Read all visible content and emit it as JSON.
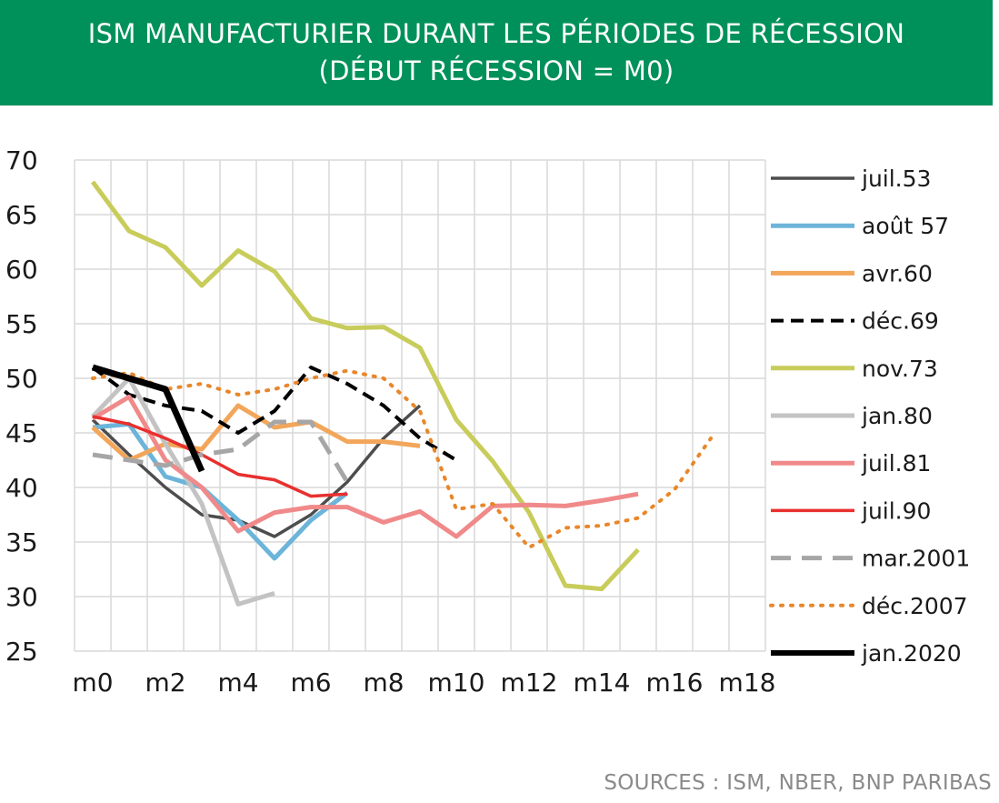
{
  "title_line1": "ISM MANUFACTURIER DURANT LES PÉRIODES DE RÉCESSION",
  "title_line2": "(DÉBUT RÉCESSION = M0)",
  "source": "SOURCES : ISM, NBER, BNP PARIBAS",
  "chart_data": {
    "type": "line",
    "ylim": [
      25,
      70
    ],
    "xlim": [
      -0.5,
      18.5
    ],
    "grid": true,
    "legend_position": "right",
    "x_tick_labels": [
      "m0",
      "m2",
      "m4",
      "m6",
      "m8",
      "m10",
      "m12",
      "m14",
      "m16",
      "m18"
    ],
    "x_tick_values": [
      0,
      2,
      4,
      6,
      8,
      10,
      12,
      14,
      16,
      18
    ],
    "y_ticks": [
      70,
      65,
      60,
      55,
      50,
      45,
      40,
      35,
      30,
      25
    ],
    "series": [
      {
        "name": "juil.53",
        "color": "#4d4d4d",
        "style": "solid",
        "width": 3.5,
        "x": [
          0,
          1,
          2,
          3,
          4,
          5,
          6,
          7,
          8,
          9
        ],
        "y": [
          46.2,
          43.0,
          40.0,
          37.5,
          37.0,
          35.5,
          37.5,
          40.5,
          44.5,
          47.5
        ]
      },
      {
        "name": "août 57",
        "color": "#6cb4d9",
        "style": "solid",
        "width": 5,
        "x": [
          0,
          1,
          2,
          3,
          4,
          5,
          6,
          7
        ],
        "y": [
          45.5,
          45.8,
          41.0,
          40.0,
          37.0,
          33.5,
          37.0,
          39.5
        ]
      },
      {
        "name": "avr.60",
        "color": "#f2a65a",
        "style": "solid",
        "width": 5,
        "x": [
          0,
          1,
          2,
          3,
          4,
          5,
          6,
          7,
          8,
          9
        ],
        "y": [
          45.5,
          42.5,
          44.0,
          43.5,
          47.5,
          45.5,
          46.0,
          44.2,
          44.2,
          43.8
        ]
      },
      {
        "name": "déc.69",
        "color": "#000000",
        "style": "dashed",
        "width": 4,
        "x": [
          0,
          1,
          2,
          3,
          4,
          5,
          6,
          7,
          8,
          9,
          10
        ],
        "y": [
          51.0,
          48.5,
          47.5,
          47.0,
          45.0,
          47.0,
          51.0,
          49.5,
          47.5,
          44.5,
          42.5
        ]
      },
      {
        "name": "nov.73",
        "color": "#c8cc5a",
        "style": "solid",
        "width": 5,
        "x": [
          0,
          1,
          2,
          3,
          4,
          5,
          6,
          7,
          8,
          9,
          10,
          11,
          12,
          13,
          14,
          15
        ],
        "y": [
          68.0,
          63.5,
          62.0,
          58.5,
          61.7,
          59.8,
          55.5,
          54.6,
          54.7,
          52.8,
          46.2,
          42.4,
          37.7,
          31.0,
          30.7,
          34.3
        ]
      },
      {
        "name": "jan.80",
        "color": "#c3c3c3",
        "style": "solid",
        "width": 5,
        "x": [
          0,
          1,
          2,
          3,
          4,
          5
        ],
        "y": [
          46.5,
          50.0,
          44.0,
          38.5,
          29.3,
          30.3
        ]
      },
      {
        "name": "juil.81",
        "color": "#f08a8a",
        "style": "solid",
        "width": 5,
        "x": [
          0,
          1,
          2,
          3,
          4,
          5,
          6,
          7,
          8,
          9,
          10,
          11,
          12,
          13,
          14,
          15
        ],
        "y": [
          46.3,
          48.3,
          42.5,
          40.0,
          36.0,
          37.7,
          38.2,
          38.2,
          36.8,
          37.8,
          35.5,
          38.3,
          38.4,
          38.3,
          38.8,
          39.4
        ]
      },
      {
        "name": "juil.90",
        "color": "#e8302e",
        "style": "solid",
        "width": 3.5,
        "x": [
          0,
          1,
          2,
          3,
          4,
          5,
          6,
          7
        ],
        "y": [
          46.5,
          45.8,
          44.5,
          43.0,
          41.2,
          40.7,
          39.2,
          39.4
        ]
      },
      {
        "name": "mar.2001",
        "color": "#a6a6a6",
        "style": "longdash",
        "width": 5,
        "x": [
          0,
          1,
          2,
          3,
          4,
          5,
          6,
          7
        ],
        "y": [
          43.0,
          42.5,
          42.0,
          43.0,
          43.5,
          46.0,
          46.0,
          40.5
        ]
      },
      {
        "name": "déc.2007",
        "color": "#e8872a",
        "style": "dotted",
        "width": 4,
        "x": [
          0,
          1,
          2,
          3,
          4,
          5,
          6,
          7,
          8,
          9,
          10,
          11,
          12,
          13,
          14,
          15,
          16,
          17
        ],
        "y": [
          50.0,
          50.5,
          49.0,
          49.5,
          48.5,
          49.0,
          50.0,
          50.7,
          50.0,
          47.0,
          38.0,
          38.5,
          34.5,
          36.3,
          36.5,
          37.2,
          39.8,
          44.5
        ]
      },
      {
        "name": "jan.2020",
        "color": "#000000",
        "style": "solid",
        "width": 7,
        "x": [
          0,
          1,
          2,
          3
        ],
        "y": [
          51.0,
          50.0,
          49.0,
          41.5
        ]
      }
    ]
  }
}
